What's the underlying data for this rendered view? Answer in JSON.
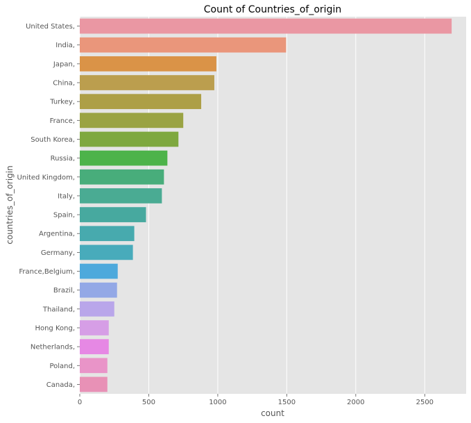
{
  "chart_data": {
    "type": "bar",
    "orientation": "horizontal",
    "title": "Count of Countries_of_origin",
    "xlabel": "count",
    "ylabel": "countries_of_origin",
    "xlim": [
      0,
      2800
    ],
    "xticks": [
      0,
      500,
      1000,
      1500,
      2000,
      2500
    ],
    "grid": true,
    "categories": [
      "United States,",
      "India,",
      "Japan,",
      "China,",
      "Turkey,",
      "France,",
      "South Korea,",
      "Russia,",
      "United Kingdom,",
      "Italy,",
      "Spain,",
      "Argentina,",
      "Germany,",
      "France,Belgium,",
      "Brazil,",
      "Thailand,",
      "Hong Kong,",
      "Netherlands,",
      "Poland,",
      "Canada,"
    ],
    "values": [
      2695,
      1495,
      990,
      975,
      880,
      750,
      715,
      635,
      610,
      595,
      480,
      395,
      385,
      275,
      270,
      250,
      210,
      210,
      200,
      200
    ],
    "colors": [
      "#ea97a3",
      "#ea967b",
      "#da9347",
      "#bb9e4e",
      "#ad9f46",
      "#9aa343",
      "#7ea83f",
      "#4db34a",
      "#48ad7b",
      "#4aab93",
      "#47a99f",
      "#47aaae",
      "#48abbb",
      "#4da9dc",
      "#93a8e6",
      "#b9a6ea",
      "#d69ee6",
      "#e688e4",
      "#e994c8",
      "#e891b6"
    ]
  }
}
